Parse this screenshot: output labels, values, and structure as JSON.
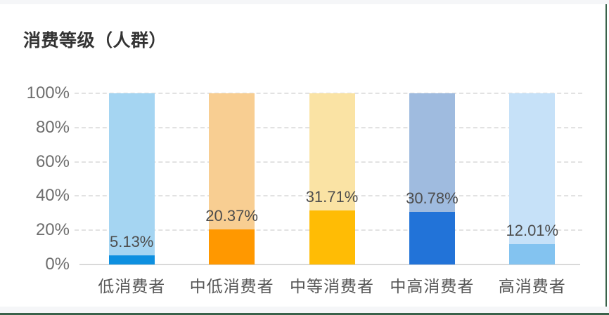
{
  "frame": {
    "background": "#ffffff",
    "top_strip_color": "#f5f6f8",
    "edge_border_color": "#3a624a"
  },
  "chart_data": {
    "type": "bar",
    "stacked": true,
    "title": "消费等级（人群）",
    "categories": [
      "低消费者",
      "中低消费者",
      "中等消费者",
      "中高消费者",
      "高消费者"
    ],
    "values": [
      5.13,
      20.37,
      31.71,
      30.78,
      12.01
    ],
    "value_labels": [
      "5.13%",
      "20.37%",
      "31.71%",
      "30.78%",
      "12.01%"
    ],
    "remainder_values": [
      94.87,
      79.63,
      68.29,
      69.22,
      87.99
    ],
    "ylim": [
      0,
      100
    ],
    "y_ticks": [
      "0%",
      "20%",
      "40%",
      "60%",
      "80%",
      "100%"
    ],
    "xlabel": "",
    "ylabel": "",
    "grid": "horizontal-dashed",
    "legend": "none",
    "bar_colors": [
      "#0e90e0",
      "#ff9800",
      "#ffbc05",
      "#2273d8",
      "#83c3f0"
    ],
    "remainder_colors": [
      "#a5d5f2",
      "#f8ce92",
      "#fae3a4",
      "#9fbbdf",
      "#c6e1f8"
    ]
  },
  "text_colors": {
    "title": "#333333",
    "y_tick": "#6e6e6e",
    "x_tick": "#575757",
    "value_label": "#4d4d4d",
    "gridline": "#e2e2e2",
    "baseline": "#d9d9d9"
  }
}
